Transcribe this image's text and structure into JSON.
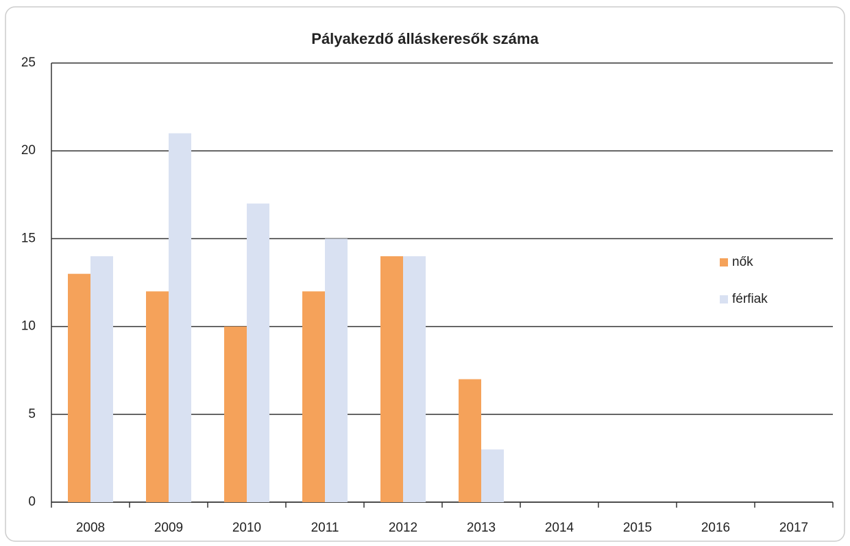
{
  "chart_data": {
    "type": "bar",
    "title": "Pályakezdő álláskeresők száma",
    "categories": [
      "2008",
      "2009",
      "2010",
      "2011",
      "2012",
      "2013",
      "2014",
      "2015",
      "2016",
      "2017"
    ],
    "series": [
      {
        "name": "nők",
        "color": "#f5a25a",
        "values": [
          13,
          12,
          10,
          12,
          14,
          7,
          null,
          null,
          null,
          null
        ]
      },
      {
        "name": "férfiak",
        "color": "#d9e1f2",
        "values": [
          14,
          21,
          17,
          15,
          14,
          3,
          null,
          null,
          null,
          null
        ]
      }
    ],
    "ylim": [
      0,
      25
    ],
    "yticks": [
      0,
      5,
      10,
      15,
      20,
      25
    ],
    "grid": true,
    "legend": "right"
  }
}
